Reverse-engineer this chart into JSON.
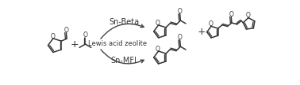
{
  "bg_color": "#ffffff",
  "line_color": "#333333",
  "text_color": "#333333",
  "arrow_color": "#444444",
  "label_sn_beta": "Sn-Beta",
  "label_lewis": "Lewis acid zeolite",
  "label_sn_mfi": "Sn-MFI",
  "font_size_catalyst": 7,
  "lw": 1.1,
  "lw_double": 0.9
}
